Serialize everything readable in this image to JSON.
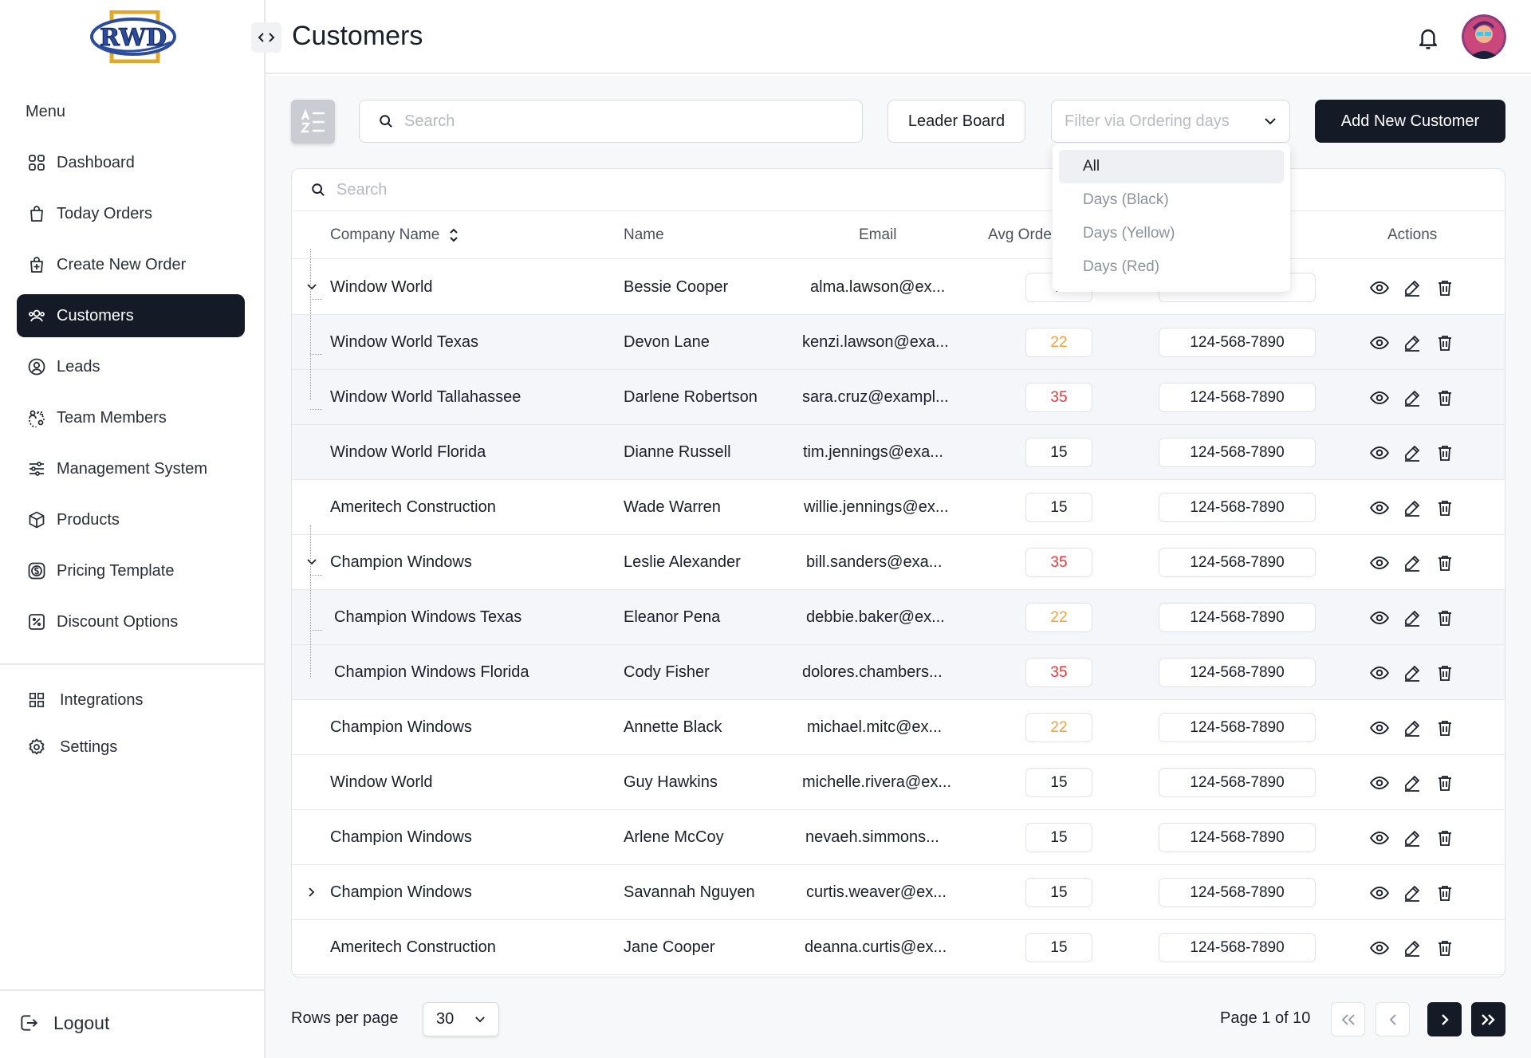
{
  "brand": {
    "logo_text": "RWD"
  },
  "header": {
    "title": "Customers"
  },
  "sidebar": {
    "menu_title": "Menu",
    "items": [
      {
        "label": "Dashboard",
        "icon": "grid-icon"
      },
      {
        "label": "Today Orders",
        "icon": "bag-icon"
      },
      {
        "label": "Create New Order",
        "icon": "bag-plus-icon"
      },
      {
        "label": "Customers",
        "icon": "users-icon",
        "active": true
      },
      {
        "label": "Leads",
        "icon": "user-circle-icon"
      },
      {
        "label": "Team Members",
        "icon": "team-icon"
      },
      {
        "label": "Management System",
        "icon": "sliders-icon"
      },
      {
        "label": "Products",
        "icon": "box-icon"
      },
      {
        "label": "Pricing Template",
        "icon": "dollar-icon"
      },
      {
        "label": "Discount Options",
        "icon": "discount-icon"
      }
    ],
    "secondary": [
      {
        "label": "Integrations",
        "icon": "apps-icon"
      },
      {
        "label": "Settings",
        "icon": "gear-icon"
      }
    ],
    "logout_label": "Logout"
  },
  "toolbar": {
    "search_placeholder": "Search",
    "leader_board_label": "Leader Board",
    "filter_placeholder": "Filter via Ordering days",
    "add_customer_label": "Add New Customer"
  },
  "filter_dropdown": {
    "options": [
      "All",
      "Days (Black)",
      "Days (Yellow)",
      "Days (Red)"
    ],
    "selected": "All"
  },
  "table": {
    "search_placeholder": "Search",
    "columns": {
      "company": "Company Name",
      "name": "Name",
      "email": "Email",
      "avg": "Avg Orde",
      "actions": "Actions"
    },
    "rows": [
      {
        "company": "Window World",
        "name": "Bessie Cooper",
        "email": "alma.lawson@ex...",
        "avg": "1",
        "avg_color": "default",
        "phone": "",
        "level": 0,
        "expander": "open"
      },
      {
        "company": "Window World Texas",
        "name": "Devon Lane",
        "email": "kenzi.lawson@exa...",
        "avg": "22",
        "avg_color": "yellow",
        "phone": "124-568-7890",
        "level": 1
      },
      {
        "company": "Window World Tallahassee",
        "name": "Darlene Robertson",
        "email": "sara.cruz@exampl...",
        "avg": "35",
        "avg_color": "red",
        "phone": "124-568-7890",
        "level": 1
      },
      {
        "company": "Window World Florida",
        "name": "Dianne Russell",
        "email": "tim.jennings@exa...",
        "avg": "15",
        "avg_color": "default",
        "phone": "124-568-7890",
        "level": 1
      },
      {
        "company": "Ameritech Construction",
        "name": "Wade Warren",
        "email": "willie.jennings@ex...",
        "avg": "15",
        "avg_color": "default",
        "phone": "124-568-7890",
        "level": 0
      },
      {
        "company": "Champion Windows",
        "name": "Leslie Alexander",
        "email": "bill.sanders@exa...",
        "avg": "35",
        "avg_color": "red",
        "phone": "124-568-7890",
        "level": 0,
        "expander": "open"
      },
      {
        "company": "Champion Windows Texas",
        "name": "Eleanor Pena",
        "email": "debbie.baker@ex...",
        "avg": "22",
        "avg_color": "yellow",
        "phone": "124-568-7890",
        "level": 1
      },
      {
        "company": "Champion Windows Florida",
        "name": "Cody Fisher",
        "email": "dolores.chambers...",
        "avg": "35",
        "avg_color": "red",
        "phone": "124-568-7890",
        "level": 1
      },
      {
        "company": "Champion Windows",
        "name": "Annette Black",
        "email": "michael.mitc@ex...",
        "avg": "22",
        "avg_color": "yellow",
        "phone": "124-568-7890",
        "level": 0
      },
      {
        "company": "Window World",
        "name": "Guy Hawkins",
        "email": "michelle.rivera@ex...",
        "avg": "15",
        "avg_color": "default",
        "phone": "124-568-7890",
        "level": 0
      },
      {
        "company": "Champion Windows",
        "name": "Arlene McCoy",
        "email": "nevaeh.simmons...",
        "avg": "15",
        "avg_color": "default",
        "phone": "124-568-7890",
        "level": 0
      },
      {
        "company": "Champion Windows",
        "name": "Savannah Nguyen",
        "email": "curtis.weaver@ex...",
        "avg": "15",
        "avg_color": "default",
        "phone": "124-568-7890",
        "level": 0,
        "expander": "closed"
      },
      {
        "company": "Ameritech Construction",
        "name": "Jane Cooper",
        "email": "deanna.curtis@ex...",
        "avg": "15",
        "avg_color": "default",
        "phone": "124-568-7890",
        "level": 0
      }
    ]
  },
  "pagination": {
    "rows_per_page_label": "Rows per page",
    "rows_per_page_value": "30",
    "page_info": "Page 1 of 10"
  },
  "colors": {
    "primary": "#141a26",
    "yellow": "#f0a23a",
    "red": "#e23b3b"
  }
}
